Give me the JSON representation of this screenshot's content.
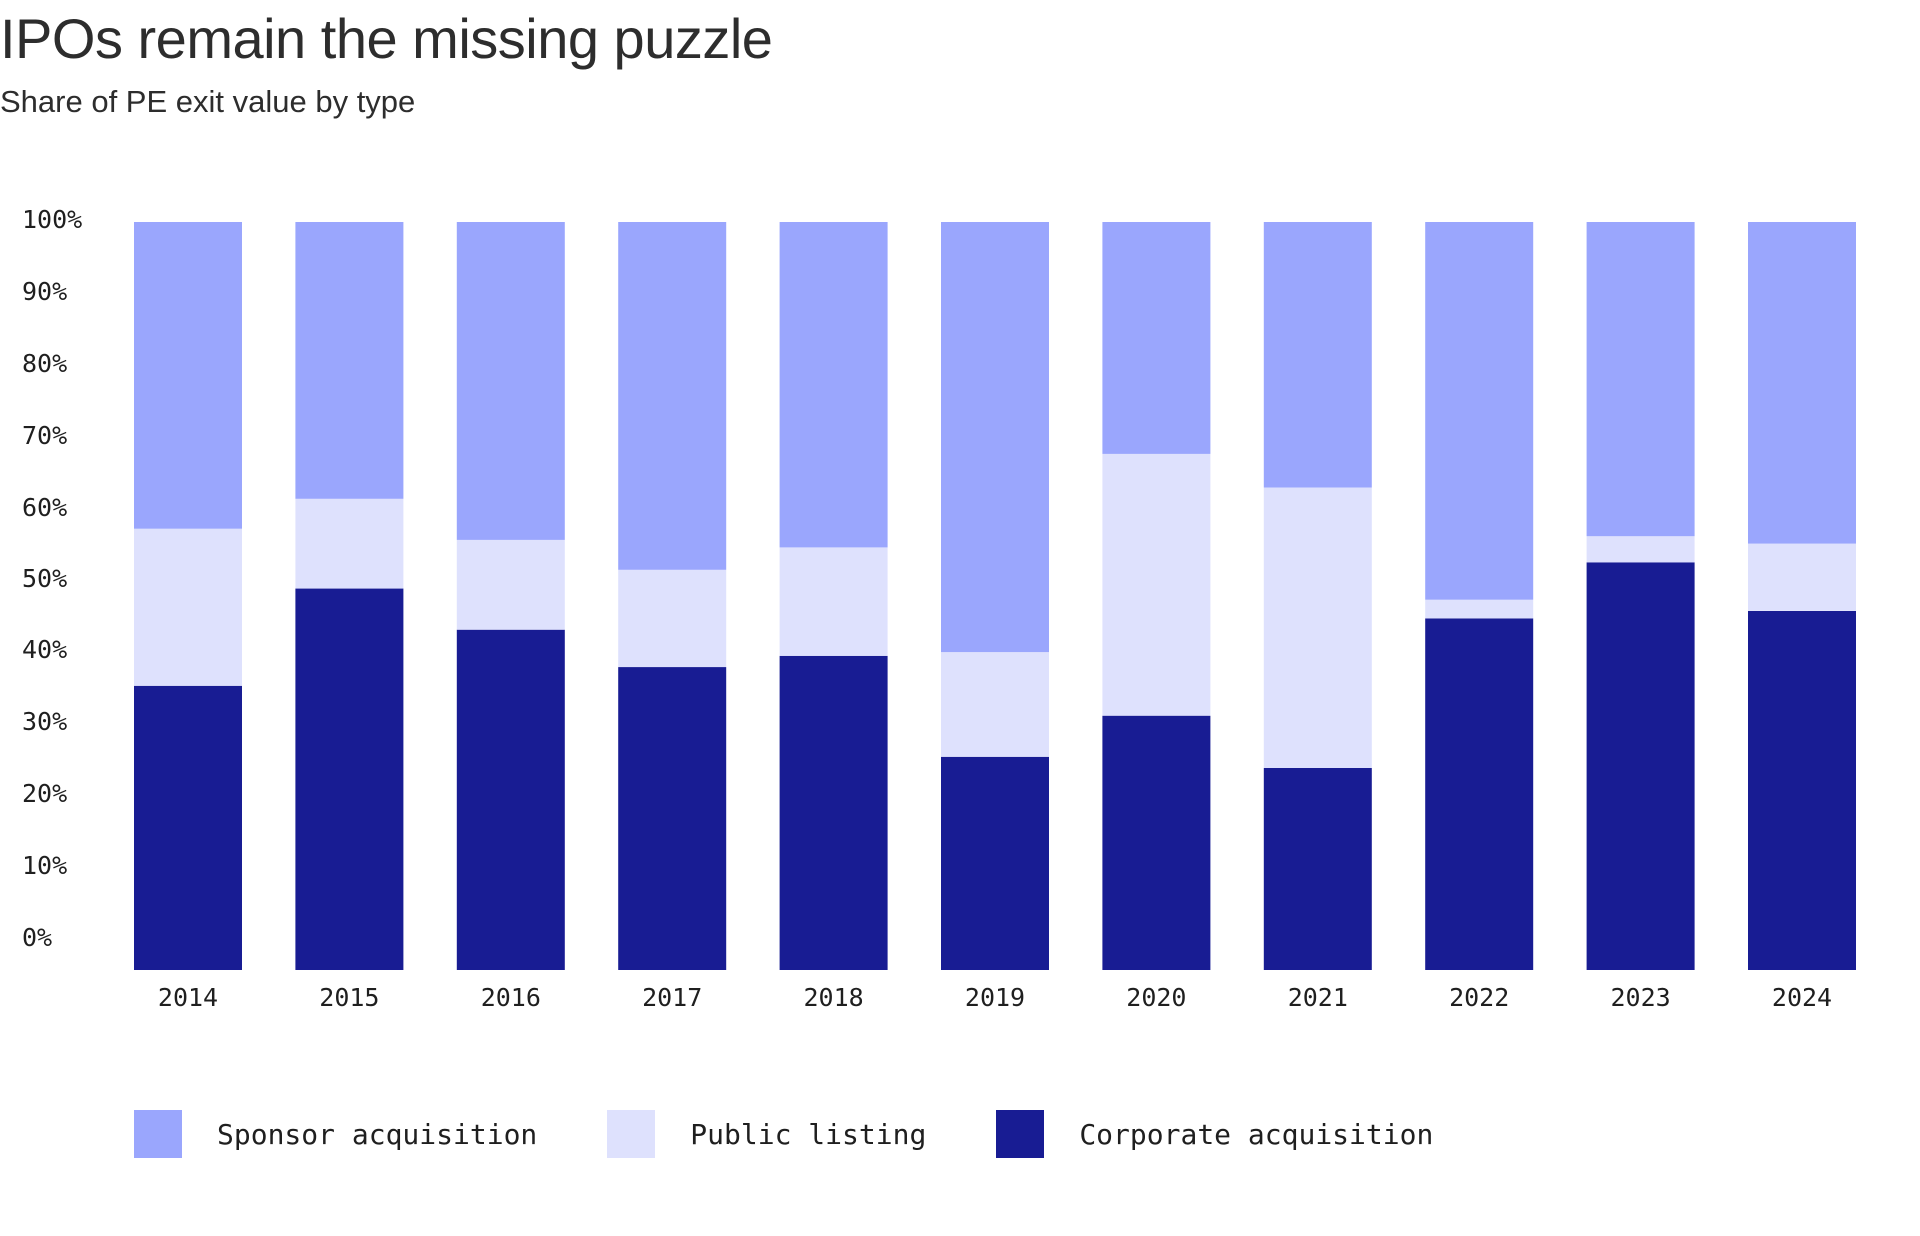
{
  "header": {
    "title": "IPOs remain the missing puzzle",
    "subtitle": "Share of PE exit value by type"
  },
  "colors": {
    "sponsor": "#9aa6fd",
    "public": "#dee1fd",
    "corporate": "#181c93"
  },
  "legend": {
    "sponsor_label": "Sponsor acquisition",
    "public_label": "Public listing",
    "corporate_label": "Corporate acquisition"
  },
  "chart_data": {
    "type": "bar",
    "stacked": true,
    "title": "IPOs remain the missing puzzle",
    "subtitle": "Share of PE exit value by type",
    "xlabel": "",
    "ylabel": "",
    "ylim": [
      0,
      100
    ],
    "y_ticks": [
      "0%",
      "10%",
      "20%",
      "30%",
      "40%",
      "50%",
      "60%",
      "70%",
      "80%",
      "90%",
      "100%"
    ],
    "categories": [
      "2014",
      "2015",
      "2016",
      "2017",
      "2018",
      "2019",
      "2020",
      "2021",
      "2022",
      "2023",
      "2024"
    ],
    "series": [
      {
        "name": "Corporate acquisition",
        "color": "#181c93",
        "values": [
          38,
          51,
          45.5,
          40.5,
          42,
          28.5,
          34,
          27,
          47,
          54.5,
          48
        ]
      },
      {
        "name": "Public listing",
        "color": "#dee1fd",
        "values": [
          21,
          12,
          12,
          13,
          14.5,
          14,
          35,
          37.5,
          2.5,
          3.5,
          9
        ]
      },
      {
        "name": "Sponsor acquisition",
        "color": "#9aa6fd",
        "values": [
          41,
          37,
          42.5,
          46.5,
          43.5,
          57.5,
          31,
          35.5,
          50.5,
          42,
          43
        ]
      }
    ],
    "legend_position": "bottom-left",
    "grid": false
  }
}
